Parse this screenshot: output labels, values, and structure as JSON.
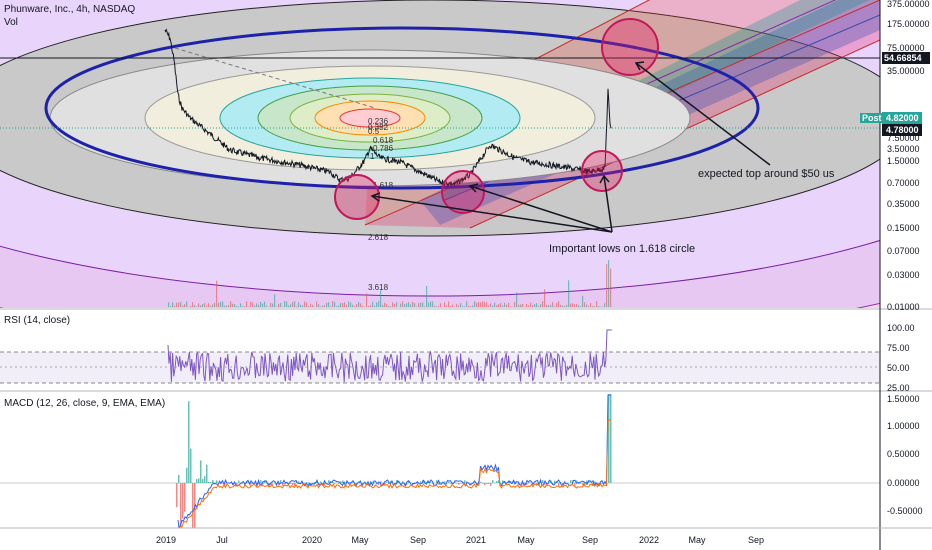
{
  "header": {
    "symbol_title": "Phunware, Inc., 4h, NASDAQ",
    "volume_label": "Vol"
  },
  "panes": {
    "rsi_title": "RSI (14, close)",
    "macd_title": "MACD (12, 26, close, 9, EMA, EMA)"
  },
  "price_axis": {
    "ticks": [
      "375.00000",
      "175.00000",
      "75.00000",
      "35.00000",
      "7.50000",
      "3.50000",
      "1.50000",
      "0.70000",
      "0.35000",
      "0.15000",
      "0.07000",
      "0.03000",
      "0.01000"
    ],
    "marker_label": "54.66854",
    "post_label": "Post",
    "post_value": "4.82000",
    "last_value": "4.78000"
  },
  "rsi_axis": {
    "ticks": [
      "100.00",
      "75.00",
      "50.00",
      "25.00"
    ]
  },
  "macd_axis": {
    "ticks": [
      "1.50000",
      "1.00000",
      "0.50000",
      "0.00000",
      "-0.50000"
    ]
  },
  "time_axis": {
    "ticks": [
      "2019",
      "Jul",
      "2020",
      "May",
      "Sep",
      "2021",
      "May",
      "Sep",
      "2022",
      "May",
      "Sep"
    ]
  },
  "fib_labels": [
    "0.236",
    "0.382",
    "0.5",
    "0.618",
    "0.786",
    "1",
    "1.618",
    "2.618",
    "3.618"
  ],
  "annotations": {
    "top_note": "expected top around $50 us",
    "lows_note": "Important lows on 1.618 circle"
  },
  "colors": {
    "ellipse_main": "#1e22aa",
    "circle_marker": "#c2185b",
    "rsi_line": "#7e57c2",
    "macd_line": "#2962ff",
    "signal_line": "#ff6d00",
    "hist_up": "#26a69a",
    "hist_down": "#ef5350",
    "price_badge": "#131722",
    "post_badge": "#26a69a"
  },
  "chart_data": {
    "type": "line",
    "scale": "log",
    "title": "Phunware, Inc., 4h, NASDAQ",
    "x_ticks": [
      "2019",
      "Jul",
      "2020",
      "May",
      "Sep",
      "2021",
      "May",
      "Sep",
      "2022",
      "May",
      "Sep"
    ],
    "price_series": {
      "x": [
        "2019-01",
        "2019-02",
        "2019-03",
        "2019-04",
        "2019-05",
        "2019-07",
        "2019-09",
        "2019-11",
        "2020-01",
        "2020-03",
        "2020-05",
        "2020-07",
        "2020-09",
        "2020-11",
        "2021-01",
        "2021-03",
        "2021-05",
        "2021-07",
        "2021-09",
        "2021-10",
        "2021-10"
      ],
      "values": [
        250,
        40,
        8,
        4,
        2.5,
        2.0,
        1.6,
        1.5,
        1.2,
        0.9,
        1.6,
        1.3,
        0.8,
        0.7,
        2.2,
        1.6,
        1.2,
        1.1,
        0.9,
        8.0,
        4.8
      ]
    },
    "rsi_series": {
      "name": "RSI (14, close)",
      "range": [
        25,
        100
      ],
      "levels": [
        70,
        50,
        30
      ]
    },
    "macd_series": {
      "name": "MACD (12, 26, close, 9, EMA, EMA)",
      "range": [
        -0.5,
        1.5
      ]
    }
  }
}
